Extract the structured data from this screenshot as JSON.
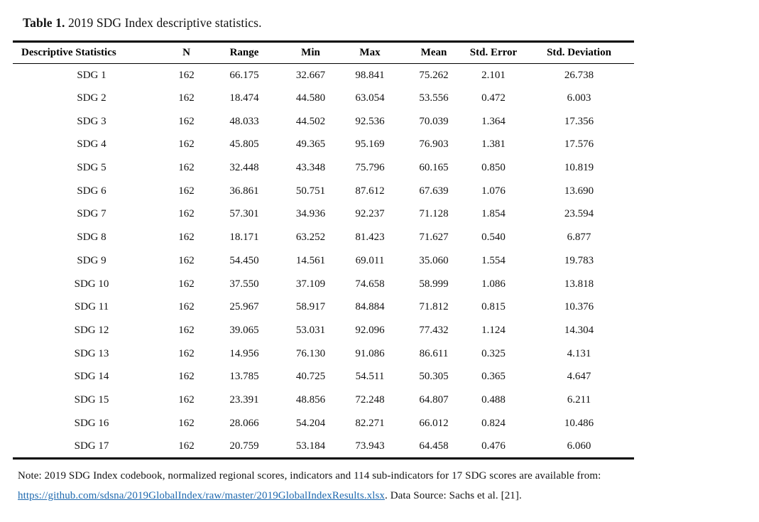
{
  "title": {
    "label": "Table 1.",
    "text": " 2019 SDG Index descriptive statistics."
  },
  "table": {
    "columns": [
      "Descriptive Statistics",
      "N",
      "Range",
      "Min",
      "Max",
      "Mean",
      "Std. Error",
      "Std. Deviation"
    ],
    "rows": [
      [
        "SDG 1",
        "162",
        "66.175",
        "32.667",
        "98.841",
        "75.262",
        "2.101",
        "26.738"
      ],
      [
        "SDG 2",
        "162",
        "18.474",
        "44.580",
        "63.054",
        "53.556",
        "0.472",
        "6.003"
      ],
      [
        "SDG 3",
        "162",
        "48.033",
        "44.502",
        "92.536",
        "70.039",
        "1.364",
        "17.356"
      ],
      [
        "SDG 4",
        "162",
        "45.805",
        "49.365",
        "95.169",
        "76.903",
        "1.381",
        "17.576"
      ],
      [
        "SDG 5",
        "162",
        "32.448",
        "43.348",
        "75.796",
        "60.165",
        "0.850",
        "10.819"
      ],
      [
        "SDG 6",
        "162",
        "36.861",
        "50.751",
        "87.612",
        "67.639",
        "1.076",
        "13.690"
      ],
      [
        "SDG 7",
        "162",
        "57.301",
        "34.936",
        "92.237",
        "71.128",
        "1.854",
        "23.594"
      ],
      [
        "SDG 8",
        "162",
        "18.171",
        "63.252",
        "81.423",
        "71.627",
        "0.540",
        "6.877"
      ],
      [
        "SDG 9",
        "162",
        "54.450",
        "14.561",
        "69.011",
        "35.060",
        "1.554",
        "19.783"
      ],
      [
        "SDG 10",
        "162",
        "37.550",
        "37.109",
        "74.658",
        "58.999",
        "1.086",
        "13.818"
      ],
      [
        "SDG 11",
        "162",
        "25.967",
        "58.917",
        "84.884",
        "71.812",
        "0.815",
        "10.376"
      ],
      [
        "SDG 12",
        "162",
        "39.065",
        "53.031",
        "92.096",
        "77.432",
        "1.124",
        "14.304"
      ],
      [
        "SDG 13",
        "162",
        "14.956",
        "76.130",
        "91.086",
        "86.611",
        "0.325",
        "4.131"
      ],
      [
        "SDG 14",
        "162",
        "13.785",
        "40.725",
        "54.511",
        "50.305",
        "0.365",
        "4.647"
      ],
      [
        "SDG 15",
        "162",
        "23.391",
        "48.856",
        "72.248",
        "64.807",
        "0.488",
        "6.211"
      ],
      [
        "SDG 16",
        "162",
        "28.066",
        "54.204",
        "82.271",
        "66.012",
        "0.824",
        "10.486"
      ],
      [
        "SDG 17",
        "162",
        "20.759",
        "53.184",
        "73.943",
        "64.458",
        "0.476",
        "6.060"
      ]
    ]
  },
  "footer": {
    "note_line1": "Note: 2019 SDG Index codebook, normalized regional scores, indicators and 114 sub-indicators for 17 SDG scores are available from:",
    "link_text": "https://github.com/sdsna/2019GlobalIndex/raw/master/2019GlobalIndexResults.xlsx",
    "note_after_link": ". Data Source: Sachs et al. [21]."
  },
  "colors": {
    "text": "#121212",
    "rule": "#000000",
    "link": "#1e69af",
    "background": "#ffffff"
  }
}
